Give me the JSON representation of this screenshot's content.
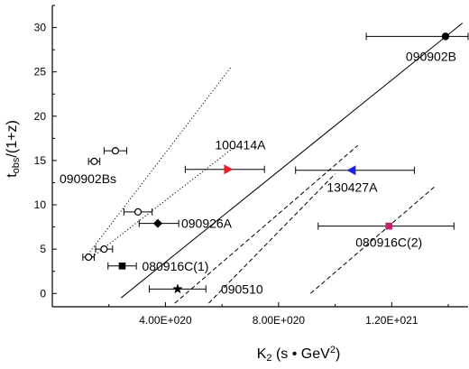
{
  "chart_data": {
    "type": "scatter",
    "title": "",
    "xlabel": "K",
    "xlabel_sub": "2",
    "xlabel_rest": " (s • GeV",
    "xlabel_sup": "2",
    "xlabel_end": ")",
    "ylabel": "t",
    "ylabel_sub": "obs",
    "ylabel_rest": "/(1+z)",
    "xlim": [
      0,
      1.47e+21
    ],
    "ylim": [
      -1.5,
      32.5
    ],
    "x_ticks": [
      {
        "value": 4e+20,
        "label": "4.00E+020"
      },
      {
        "value": 8e+20,
        "label": "8.00E+020"
      },
      {
        "value": 1.2e+21,
        "label": "1.20E+021"
      }
    ],
    "y_ticks": [
      {
        "value": 0,
        "label": "0"
      },
      {
        "value": 5,
        "label": "5"
      },
      {
        "value": 10,
        "label": "10"
      },
      {
        "value": 15,
        "label": "15"
      },
      {
        "value": 20,
        "label": "20"
      },
      {
        "value": 25,
        "label": "25"
      },
      {
        "value": 30,
        "label": "30"
      }
    ],
    "grid": false,
    "labeled_points": [
      {
        "label": "090902B",
        "x": 1.39e+21,
        "y": 29.0,
        "xerr": [
          1.11e+21,
          1.47e+21
        ],
        "marker": "circle",
        "color": "#000000",
        "label_anchor": "below-right"
      },
      {
        "label": "100414A",
        "x": 6.2e+20,
        "y": 14.0,
        "xerr": [
          4.7e+20,
          7.5e+20
        ],
        "marker": "triangle-right",
        "color": "#e8202a",
        "label_anchor": "above"
      },
      {
        "label": "130427A",
        "x": 1.06e+21,
        "y": 13.9,
        "xerr": [
          8.6e+20,
          1.28e+21
        ],
        "marker": "triangle-left",
        "color": "#2020e0",
        "label_anchor": "below"
      },
      {
        "label": "090926A",
        "x": 3.73e+20,
        "y": 7.9,
        "xerr": [
          3.07e+20,
          4.47e+20
        ],
        "marker": "diamond",
        "color": "#000000",
        "label_anchor": "right"
      },
      {
        "label": "080916C(1)",
        "x": 2.47e+20,
        "y": 3.1,
        "xerr": [
          1.97e+20,
          2.97e+20
        ],
        "marker": "square",
        "color": "#000000",
        "label_anchor": "right"
      },
      {
        "label": "080916C(2)",
        "x": 1.19e+21,
        "y": 7.6,
        "xerr": [
          9.4e+20,
          1.42e+21
        ],
        "marker": "square",
        "color": "#c0206e",
        "label_anchor": "below"
      },
      {
        "label": "090510",
        "x": 4.43e+20,
        "y": 0.5,
        "xerr": [
          3.43e+20,
          5.43e+20
        ],
        "marker": "star",
        "color": "#000000",
        "label_anchor": "right"
      }
    ],
    "open_points": [
      {
        "x": 2.23e+20,
        "y": 16.1,
        "xerr": [
          1.83e+20,
          2.63e+20
        ]
      },
      {
        "x": 1.48e+20,
        "y": 14.9,
        "xerr": [
          1.28e+20,
          1.68e+20
        ]
      },
      {
        "x": 3.03e+20,
        "y": 9.2,
        "xerr": [
          2.53e+20,
          3.53e+20
        ]
      },
      {
        "x": 1.83e+20,
        "y": 5.0,
        "xerr": [
          1.53e+20,
          2.13e+20
        ]
      },
      {
        "x": 1.28e+20,
        "y": 4.1,
        "xerr": [
          1.08e+20,
          1.48e+20
        ]
      }
    ],
    "open_points_label": "090902Bs",
    "lines": [
      {
        "style": "solid",
        "x": [
          2.43e+20,
          1.45e+21
        ],
        "y": [
          -0.5,
          30.5
        ]
      },
      {
        "style": "dotted",
        "x": [
          1.33e+20,
          6.33e+20
        ],
        "y": [
          4.7,
          25.6
        ]
      },
      {
        "style": "dotted",
        "x": [
          1.33e+20,
          6.43e+20
        ],
        "y": [
          3.9,
          16.5
        ]
      },
      {
        "style": "dashed",
        "x": [
          4.33e+20,
          1.08e+21
        ],
        "y": [
          -1.1,
          16.7
        ]
      },
      {
        "style": "dashed",
        "x": [
          5.53e+20,
          1e+21
        ],
        "y": [
          -1.1,
          13.5
        ]
      },
      {
        "style": "dashed",
        "x": [
          9.13e+20,
          1.35e+21
        ],
        "y": [
          0.0,
          12.0
        ]
      }
    ]
  }
}
